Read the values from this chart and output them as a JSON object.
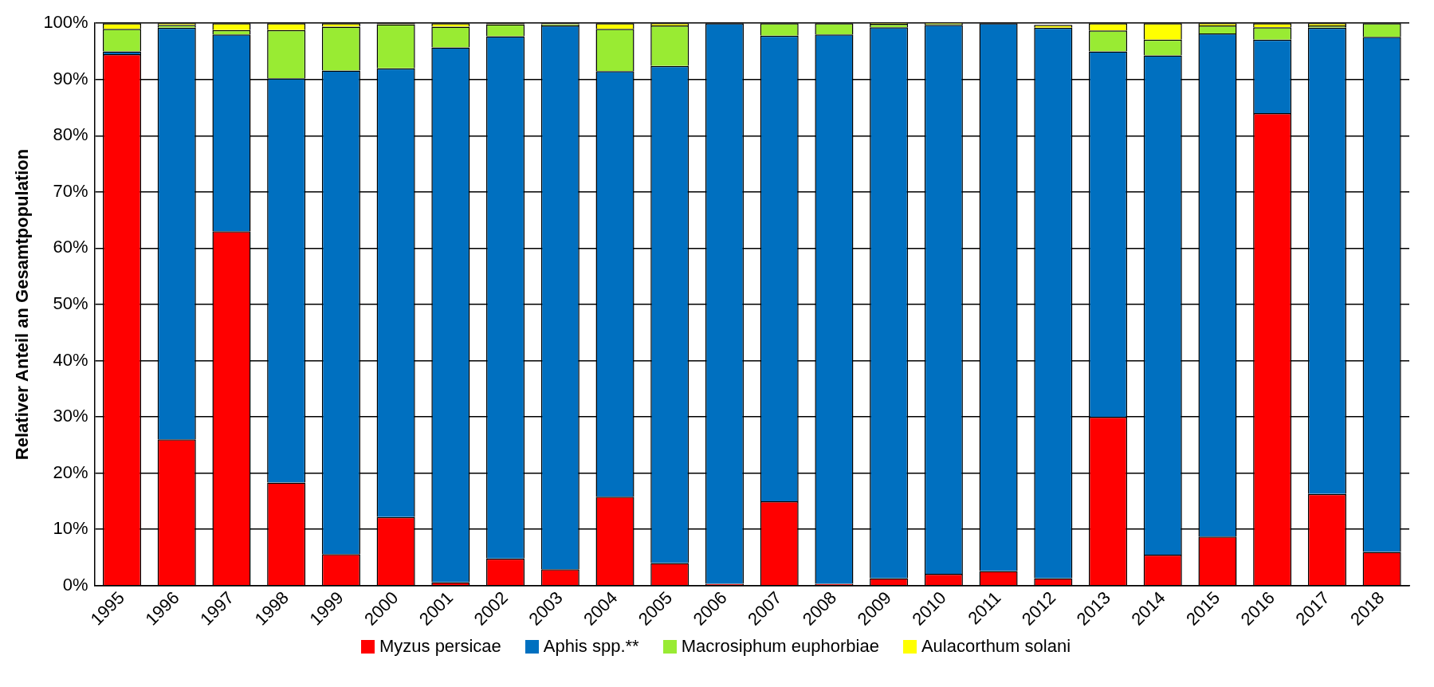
{
  "chart_data": {
    "type": "bar",
    "ylabel": "Relativer Anteil an Gesamtpopulation",
    "stacked": true,
    "grid": "y",
    "legend": "bottom",
    "categories": [
      "1995",
      "1996",
      "1997",
      "1998",
      "1999",
      "2000",
      "2001",
      "2002",
      "2003",
      "2004",
      "2005",
      "2006",
      "2007",
      "2008",
      "2009",
      "2010",
      "2011",
      "2012",
      "2013",
      "2014",
      "2015",
      "2016",
      "2017",
      "2018"
    ],
    "series": [
      {
        "name": "Myzus persicae",
        "color": "#ff0000",
        "values": [
          94.5,
          26,
          63,
          18.3,
          5.6,
          12.2,
          0.6,
          4.8,
          2.9,
          15.8,
          4,
          0.3,
          15,
          0.3,
          1.3,
          2.1,
          2.6,
          1.3,
          30,
          5.5,
          8.7,
          84,
          16.3,
          6
        ]
      },
      {
        "name": "Aphis spp.**",
        "color": "#0070c0",
        "values": [
          0.5,
          73.2,
          35,
          71.9,
          86,
          79.8,
          95.1,
          92.9,
          96.7,
          75.7,
          88.4,
          99.7,
          82.8,
          97.7,
          98,
          97.6,
          97.4,
          97.9,
          65,
          88.8,
          89.5,
          13.1,
          82.9,
          91.6
        ]
      },
      {
        "name": "Macrosiphum euphorbiae",
        "color": "#99eb33",
        "values": [
          4,
          0.5,
          0.8,
          8.6,
          7.8,
          7.8,
          3.7,
          2.1,
          0.2,
          7.5,
          7.2,
          0,
          2.2,
          2,
          0.6,
          0.2,
          0,
          null,
          3.7,
          2.8,
          1.4,
          2.2,
          0.4,
          2.4
        ]
      },
      {
        "name": "Aulacorthum solani",
        "color": "#ffff00",
        "values": [
          1,
          0.3,
          1.2,
          1.2,
          0.6,
          0.2,
          0.6,
          0.2,
          0.2,
          1,
          0.4,
          0,
          0,
          0,
          0.1,
          0.1,
          0,
          0.5,
          1.3,
          2.9,
          0.4,
          0.7,
          0.4,
          0
        ]
      }
    ],
    "ylim": [
      0,
      100
    ],
    "yticks": [
      {
        "value": 0,
        "label": "0%"
      },
      {
        "value": 10,
        "label": "10%"
      },
      {
        "value": 20,
        "label": "20%"
      },
      {
        "value": 30,
        "label": "30%"
      },
      {
        "value": 40,
        "label": "40%"
      },
      {
        "value": 50,
        "label": "50%"
      },
      {
        "value": 60,
        "label": "60%"
      },
      {
        "value": 70,
        "label": "70%"
      },
      {
        "value": 80,
        "label": "80%"
      },
      {
        "value": 90,
        "label": "90%"
      },
      {
        "value": 100,
        "label": "100%"
      }
    ]
  }
}
